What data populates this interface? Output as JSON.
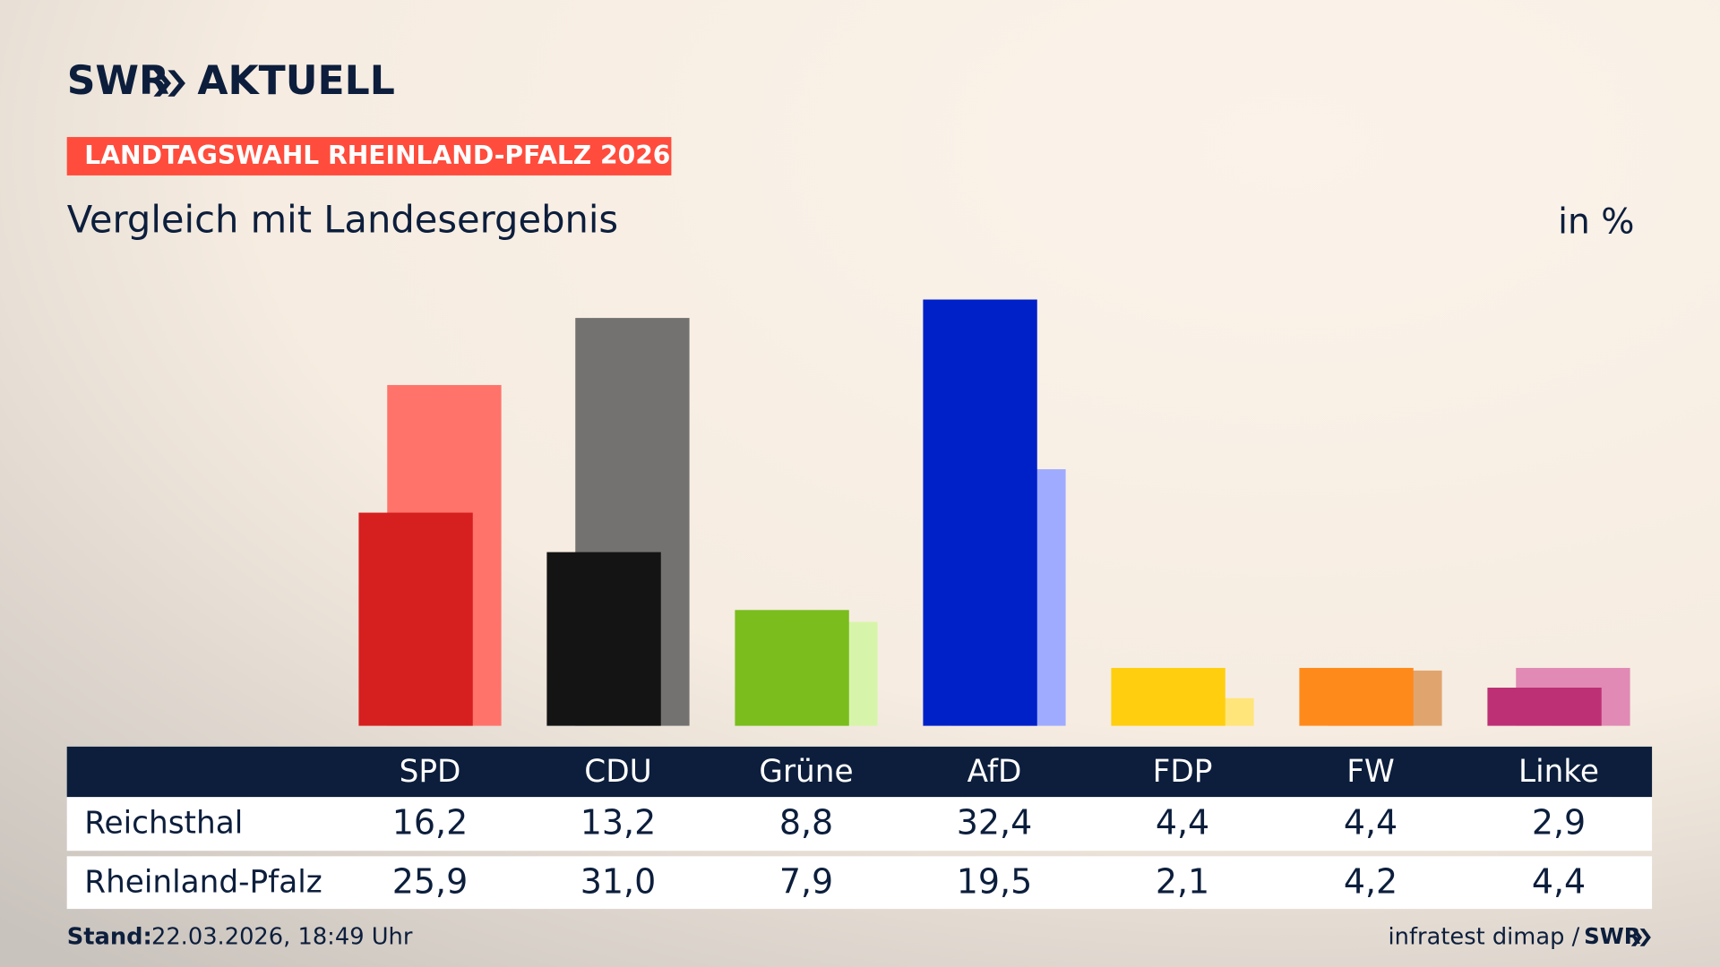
{
  "header": {
    "logo": "SWR",
    "logo_suffix": "AKTUELL",
    "tag": "LANDTAGSWAHL RHEINLAND-PFALZ 2026"
  },
  "chart_data": {
    "type": "bar",
    "title": "Vergleich mit Landesergebnis",
    "unit": "in %",
    "categories": [
      "SPD",
      "CDU",
      "Grüne",
      "AfD",
      "FDP",
      "FW",
      "Linke"
    ],
    "series": [
      {
        "name": "Reichsthal",
        "colors": [
          "#d61f1f",
          "#141414",
          "#7abd1d",
          "#0020c8",
          "#ffcf0f",
          "#ff8a1c",
          "#bd3075"
        ],
        "values": [
          16.2,
          13.2,
          8.8,
          32.4,
          4.4,
          4.4,
          2.9
        ],
        "value_labels": [
          "16,2",
          "13,2",
          "8,8",
          "32,4",
          "4,4",
          "4,4",
          "2,9"
        ]
      },
      {
        "name": "Rheinland-Pfalz",
        "colors": [
          "#ff736b",
          "#737271",
          "#d7f5aa",
          "#9fabff",
          "#ffe57a",
          "#e0a56e",
          "#e08ab5"
        ],
        "values": [
          25.9,
          31.0,
          7.9,
          19.5,
          2.1,
          4.2,
          4.4
        ],
        "value_labels": [
          "25,9",
          "31,0",
          "7,9",
          "19,5",
          "2,1",
          "4,2",
          "4,4"
        ]
      }
    ]
  },
  "footer": {
    "stand_label": "Stand:",
    "stand": "22.03.2026, 18:49 Uhr",
    "source": "infratest dimap /",
    "source_logo": "SWR"
  }
}
